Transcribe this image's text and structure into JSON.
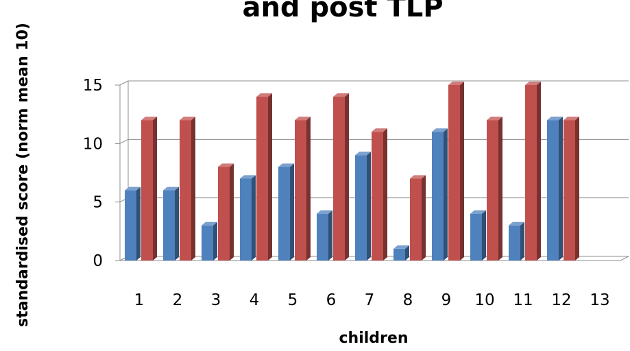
{
  "chart_data": {
    "type": "bar",
    "title": "and post TLP",
    "xlabel": "children",
    "ylabel": "standardised score (norm mean 10)",
    "categories": [
      "1",
      "2",
      "3",
      "4",
      "5",
      "6",
      "7",
      "8",
      "9",
      "10",
      "11",
      "12",
      "13"
    ],
    "series": [
      {
        "color": "#4f81bd",
        "values": [
          6,
          6,
          3,
          7,
          8,
          4,
          9,
          1,
          11,
          4,
          3,
          12,
          null
        ]
      },
      {
        "color": "#c0504d",
        "values": [
          12,
          12,
          8,
          14,
          12,
          14,
          11,
          7,
          15,
          12,
          15,
          12,
          null
        ]
      }
    ],
    "ylim": [
      0,
      15
    ],
    "yticks": [
      "0",
      "5",
      "10",
      "15"
    ],
    "grid": true,
    "legend": "none",
    "style": "3d-clustered-column"
  }
}
